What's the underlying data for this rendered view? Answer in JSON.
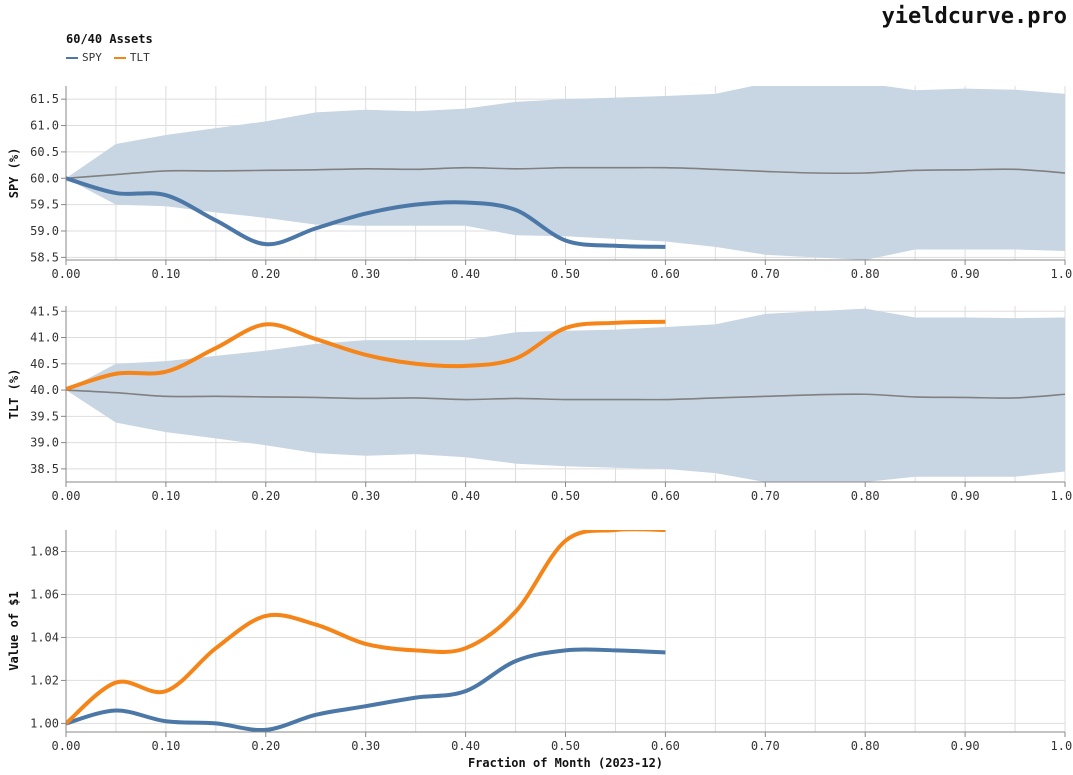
{
  "brand": "yieldcurve.pro",
  "legend": {
    "title": "60/40 Assets",
    "items": [
      {
        "label": "SPY",
        "color": "#4c78a8"
      },
      {
        "label": "TLT",
        "color": "#f58518"
      }
    ]
  },
  "colors": {
    "spy": "#4c78a8",
    "tlt": "#f58518",
    "band": "#c8d5e3",
    "median": "#808080",
    "grid": "#dddddd"
  },
  "xlabel": "Fraction of Month (2023-12)",
  "chart_data": [
    {
      "type": "area",
      "ylabel": "SPY (%)",
      "xlim": [
        0,
        1
      ],
      "ylim": [
        58.45,
        61.75
      ],
      "xticks": [
        "0.00",
        "0.10",
        "0.20",
        "0.30",
        "0.40",
        "0.50",
        "0.60",
        "0.70",
        "0.80",
        "0.90",
        "1.00"
      ],
      "yticks": [
        "58.5",
        "59.0",
        "59.5",
        "60.0",
        "60.5",
        "61.0",
        "61.5"
      ],
      "x": [
        0,
        0.05,
        0.1,
        0.15,
        0.2,
        0.25,
        0.3,
        0.35,
        0.4,
        0.45,
        0.5,
        0.55,
        0.6,
        0.65,
        0.7,
        0.75,
        0.8,
        0.85,
        0.9,
        0.95,
        1.0
      ],
      "band_upper": [
        60.0,
        60.65,
        60.82,
        60.95,
        61.08,
        61.25,
        61.3,
        61.27,
        61.32,
        61.45,
        61.5,
        61.53,
        61.56,
        61.6,
        61.8,
        61.85,
        61.8,
        61.67,
        61.7,
        61.68,
        61.6
      ],
      "band_lower": [
        60.0,
        59.5,
        59.47,
        59.35,
        59.25,
        59.12,
        59.1,
        59.1,
        59.1,
        58.92,
        58.9,
        58.85,
        58.8,
        58.7,
        58.55,
        58.5,
        58.45,
        58.65,
        58.65,
        58.65,
        58.62
      ],
      "median": [
        60.0,
        60.07,
        60.14,
        60.14,
        60.15,
        60.16,
        60.18,
        60.17,
        60.2,
        60.18,
        60.2,
        60.2,
        60.2,
        60.17,
        60.13,
        60.1,
        60.1,
        60.15,
        60.16,
        60.17,
        60.1
      ],
      "series": [
        {
          "name": "SPY",
          "color": "#4c78a8",
          "x": [
            0,
            0.05,
            0.1,
            0.15,
            0.2,
            0.25,
            0.3,
            0.35,
            0.4,
            0.45,
            0.5,
            0.55,
            0.6
          ],
          "y": [
            60.0,
            59.72,
            59.68,
            59.2,
            58.75,
            59.05,
            59.33,
            59.5,
            59.54,
            59.4,
            58.82,
            58.72,
            58.7
          ]
        }
      ]
    },
    {
      "type": "area",
      "ylabel": "TLT (%)",
      "xlim": [
        0,
        1
      ],
      "ylim": [
        38.25,
        41.6
      ],
      "xticks": [
        "0.00",
        "0.10",
        "0.20",
        "0.30",
        "0.40",
        "0.50",
        "0.60",
        "0.70",
        "0.80",
        "0.90",
        "1.00"
      ],
      "yticks": [
        "38.5",
        "39.0",
        "39.5",
        "40.0",
        "40.5",
        "41.0",
        "41.5"
      ],
      "x": [
        0,
        0.05,
        0.1,
        0.15,
        0.2,
        0.25,
        0.3,
        0.35,
        0.4,
        0.45,
        0.5,
        0.55,
        0.6,
        0.65,
        0.7,
        0.75,
        0.8,
        0.85,
        0.9,
        0.95,
        1.0
      ],
      "band_upper": [
        40.0,
        40.5,
        40.55,
        40.65,
        40.75,
        40.88,
        40.95,
        40.95,
        40.95,
        41.1,
        41.13,
        41.15,
        41.2,
        41.25,
        41.45,
        41.5,
        41.55,
        41.38,
        41.38,
        41.37,
        41.38
      ],
      "band_lower": [
        40.0,
        39.38,
        39.2,
        39.08,
        38.95,
        38.8,
        38.75,
        38.78,
        38.72,
        38.6,
        38.55,
        38.52,
        38.5,
        38.42,
        38.25,
        38.25,
        38.25,
        38.35,
        38.35,
        38.35,
        38.45
      ],
      "median": [
        40.0,
        39.95,
        39.88,
        39.88,
        39.87,
        39.86,
        39.84,
        39.85,
        39.82,
        39.84,
        39.82,
        39.82,
        39.82,
        39.85,
        39.88,
        39.91,
        39.92,
        39.87,
        39.86,
        39.85,
        39.92
      ],
      "series": [
        {
          "name": "TLT",
          "color": "#f58518",
          "x": [
            0,
            0.05,
            0.1,
            0.15,
            0.2,
            0.25,
            0.3,
            0.35,
            0.4,
            0.45,
            0.5,
            0.55,
            0.6
          ],
          "y": [
            40.02,
            40.31,
            40.35,
            40.8,
            41.25,
            40.97,
            40.67,
            40.5,
            40.46,
            40.6,
            41.18,
            41.28,
            41.3
          ]
        }
      ]
    },
    {
      "type": "line",
      "ylabel": "Value of $1",
      "xlim": [
        0,
        1
      ],
      "ylim": [
        0.996,
        1.09
      ],
      "xticks": [
        "0.00",
        "0.10",
        "0.20",
        "0.30",
        "0.40",
        "0.50",
        "0.60",
        "0.70",
        "0.80",
        "0.90",
        "1.00"
      ],
      "yticks": [
        "1.00",
        "1.02",
        "1.04",
        "1.06",
        "1.08"
      ],
      "series": [
        {
          "name": "SPY",
          "color": "#4c78a8",
          "x": [
            0,
            0.05,
            0.1,
            0.15,
            0.2,
            0.25,
            0.3,
            0.35,
            0.4,
            0.45,
            0.5,
            0.55,
            0.6
          ],
          "y": [
            1.0,
            1.006,
            1.001,
            1.0,
            0.997,
            1.004,
            1.008,
            1.012,
            1.015,
            1.029,
            1.034,
            1.034,
            1.033
          ]
        },
        {
          "name": "TLT",
          "color": "#f58518",
          "x": [
            0,
            0.05,
            0.1,
            0.15,
            0.2,
            0.25,
            0.3,
            0.35,
            0.4,
            0.45,
            0.5,
            0.55,
            0.6
          ],
          "y": [
            1.0,
            1.019,
            1.015,
            1.035,
            1.05,
            1.046,
            1.037,
            1.034,
            1.035,
            1.052,
            1.085,
            1.09,
            1.09
          ]
        }
      ]
    }
  ]
}
